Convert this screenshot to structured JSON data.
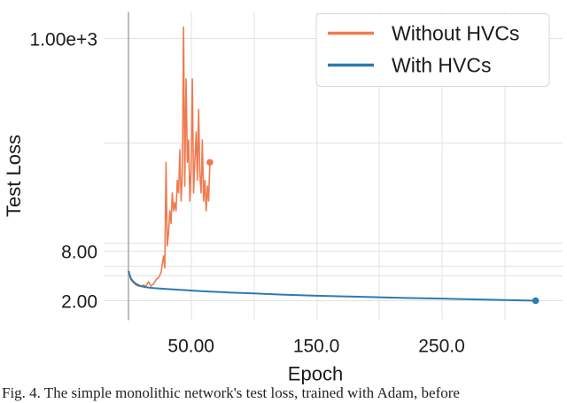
{
  "chart_data": {
    "type": "line",
    "title": "",
    "xlabel": "Epoch",
    "ylabel": "Test Loss",
    "xlim": [
      -10,
      335
    ],
    "x_ticks": [
      50,
      150,
      250
    ],
    "x_tick_labels": [
      "50.00",
      "150.0",
      "250.0"
    ],
    "y_scale": "nonlinear (broken-log style)",
    "y_tick_labels": [
      "2.00",
      "8.00",
      "1.00e+3"
    ],
    "y_tick_values": [
      2,
      8,
      1000
    ],
    "grid": true,
    "legend_position": "top-right",
    "series": [
      {
        "name": "Without HVCs",
        "color": "#f07a4f",
        "x": [
          0,
          2,
          4,
          6,
          8,
          10,
          12,
          14,
          16,
          18,
          20,
          22,
          24,
          26,
          28,
          29,
          30,
          31,
          32,
          33,
          34,
          35,
          36,
          37,
          38,
          39,
          40,
          41,
          42,
          43,
          44,
          45,
          46,
          47,
          48,
          49,
          50,
          51,
          52,
          53,
          54,
          55,
          56,
          57,
          58,
          59,
          60,
          61,
          62,
          63,
          64,
          65
        ],
        "y": [
          4.6,
          3.6,
          3.3,
          3.1,
          3.0,
          3.0,
          3.1,
          3.0,
          3.4,
          3.0,
          3.2,
          3.6,
          3.8,
          4.4,
          7.0,
          5.0,
          60.0,
          9.0,
          12.0,
          20.0,
          15.0,
          30.0,
          20.0,
          24.0,
          20.0,
          40.0,
          30.0,
          80.0,
          25.0,
          45.0,
          1300.0,
          35.0,
          400.0,
          60.0,
          100.0,
          25.0,
          50.0,
          400.0,
          30.0,
          60.0,
          120.0,
          40.0,
          200.0,
          45.0,
          30.0,
          100.0,
          25.0,
          40.0,
          20.0,
          35.0,
          25.0,
          60.0
        ]
      },
      {
        "name": "With HVCs",
        "color": "#2b7bb2",
        "x": [
          0,
          2,
          4,
          6,
          8,
          10,
          15,
          20,
          30,
          40,
          50,
          60,
          80,
          100,
          120,
          150,
          180,
          200,
          220,
          250,
          280,
          300,
          325
        ],
        "y": [
          4.6,
          3.7,
          3.4,
          3.2,
          3.1,
          3.0,
          2.9,
          2.85,
          2.78,
          2.72,
          2.66,
          2.6,
          2.52,
          2.45,
          2.38,
          2.3,
          2.24,
          2.2,
          2.16,
          2.12,
          2.07,
          2.04,
          2.0
        ]
      }
    ]
  },
  "caption": "Fig. 4. The simple monolithic network's test loss, trained with Adam, before"
}
